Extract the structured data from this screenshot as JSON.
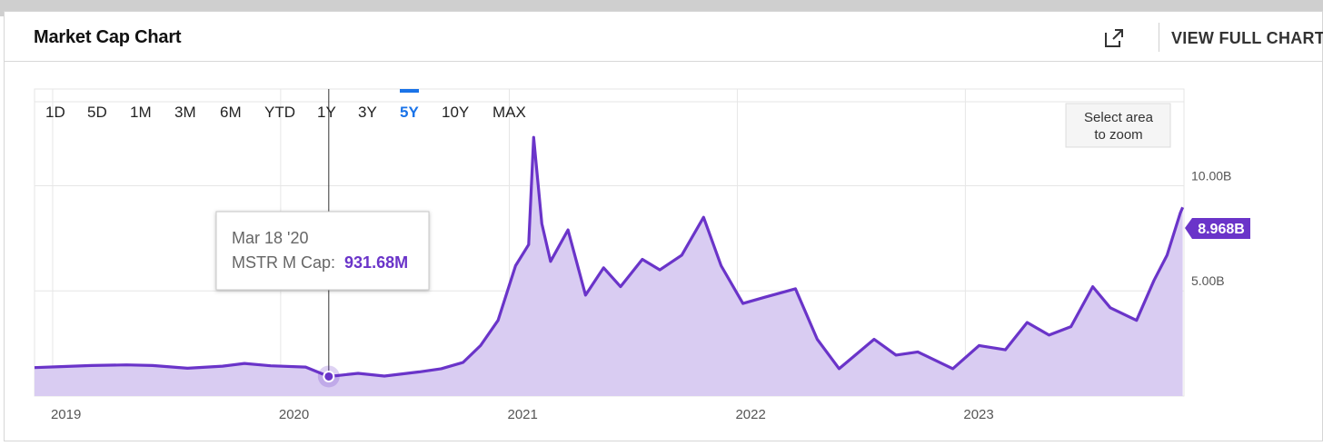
{
  "header": {
    "title": "Market Cap Chart",
    "view_full_label": "VIEW FULL CHART",
    "external_icon": "external-link-icon"
  },
  "range_selector": {
    "options": [
      "1D",
      "5D",
      "1M",
      "3M",
      "6M",
      "YTD",
      "1Y",
      "3Y",
      "5Y",
      "10Y",
      "MAX"
    ],
    "selected": "5Y"
  },
  "zoom_hint": {
    "line1": "Select area",
    "line2": "to zoom"
  },
  "tooltip": {
    "date": "Mar 18 '20",
    "series_label": "MSTR M Cap:",
    "value": "931.68M"
  },
  "last_value_label": "8.968B",
  "colors": {
    "line": "#6a34c9",
    "fill": "#d9ccf2",
    "accent": "#1a73e8",
    "badge": "#6a34c9"
  },
  "chart_data": {
    "type": "area",
    "series": [
      {
        "name": "MSTR M Cap",
        "unit": "B",
        "points": [
          [
            "2018-12-03",
            1.35
          ],
          [
            "2019-01-14",
            1.4
          ],
          [
            "2019-03-04",
            1.45
          ],
          [
            "2019-04-29",
            1.48
          ],
          [
            "2019-06-10",
            1.45
          ],
          [
            "2019-08-05",
            1.32
          ],
          [
            "2019-09-30",
            1.42
          ],
          [
            "2019-11-04",
            1.55
          ],
          [
            "2019-12-16",
            1.44
          ],
          [
            "2020-02-10",
            1.38
          ],
          [
            "2020-03-18",
            0.93
          ],
          [
            "2020-05-04",
            1.08
          ],
          [
            "2020-06-15",
            0.95
          ],
          [
            "2020-08-10",
            1.15
          ],
          [
            "2020-09-14",
            1.3
          ],
          [
            "2020-10-19",
            1.6
          ],
          [
            "2020-11-16",
            2.4
          ],
          [
            "2020-12-14",
            3.6
          ],
          [
            "2021-01-11",
            6.2
          ],
          [
            "2021-02-01",
            7.2
          ],
          [
            "2021-02-09",
            12.3
          ],
          [
            "2021-02-22",
            8.2
          ],
          [
            "2021-03-08",
            6.4
          ],
          [
            "2021-04-05",
            7.9
          ],
          [
            "2021-05-03",
            4.8
          ],
          [
            "2021-06-01",
            6.1
          ],
          [
            "2021-06-28",
            5.2
          ],
          [
            "2021-08-02",
            6.5
          ],
          [
            "2021-08-30",
            6.0
          ],
          [
            "2021-10-04",
            6.7
          ],
          [
            "2021-11-08",
            8.5
          ],
          [
            "2021-12-06",
            6.2
          ],
          [
            "2022-01-10",
            4.4
          ],
          [
            "2022-02-14",
            4.7
          ],
          [
            "2022-04-04",
            5.1
          ],
          [
            "2022-05-09",
            2.7
          ],
          [
            "2022-06-13",
            1.3
          ],
          [
            "2022-08-08",
            2.7
          ],
          [
            "2022-09-12",
            1.95
          ],
          [
            "2022-10-17",
            2.1
          ],
          [
            "2022-12-12",
            1.3
          ],
          [
            "2023-01-23",
            2.4
          ],
          [
            "2023-03-06",
            2.2
          ],
          [
            "2023-04-10",
            3.5
          ],
          [
            "2023-05-15",
            2.9
          ],
          [
            "2023-06-19",
            3.3
          ],
          [
            "2023-07-24",
            5.2
          ],
          [
            "2023-08-21",
            4.2
          ],
          [
            "2023-10-02",
            3.6
          ],
          [
            "2023-10-30",
            5.5
          ],
          [
            "2023-11-20",
            6.7
          ],
          [
            "2023-12-11",
            8.7
          ],
          [
            "2023-12-15",
            8.97
          ]
        ]
      }
    ],
    "x_ticks": [
      "2019",
      "2020",
      "2021",
      "2022",
      "2023"
    ],
    "y_ticks": [
      {
        "value": 5,
        "label": "5.00B"
      },
      {
        "value": 10,
        "label": "10.00B"
      }
    ],
    "x_range": [
      "2018-12-03",
      "2023-12-17"
    ],
    "y_range": [
      0,
      14.6
    ],
    "highlight": {
      "date": "2020-03-18",
      "value": 0.93
    },
    "grid": true
  }
}
